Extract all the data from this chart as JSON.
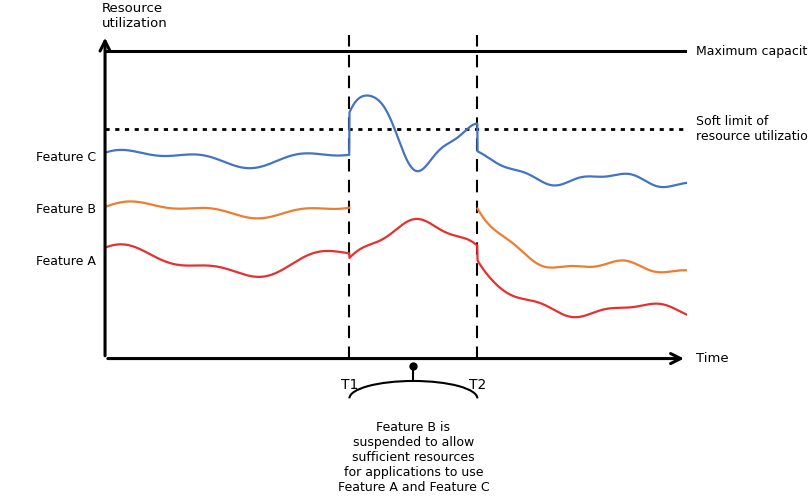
{
  "ylabel": "Resource\nutilization",
  "xlabel": "Time",
  "max_capacity_label": "Maximum capacity",
  "soft_limit_label": "Soft limit of\nresource utilization",
  "feature_labels": [
    "Feature C",
    "Feature B",
    "Feature A"
  ],
  "t1_label": "T1",
  "t2_label": "T2",
  "annotation_text": "Feature B is\nsuspended to allow\nsufficient resources\nfor applications to use\nFeature A and Feature C",
  "xlim": [
    0,
    10
  ],
  "ylim": [
    0,
    10
  ],
  "t1_x": 4.2,
  "t2_x": 6.4,
  "max_capacity_y": 9.5,
  "soft_limit_y": 7.1,
  "feature_c_base": 6.2,
  "feature_b_base": 4.6,
  "feature_a_base": 3.0,
  "color_c": "#4472C4",
  "color_b": "#ED7D31",
  "color_a": "#E63030",
  "bg_color": "#FFFFFF"
}
